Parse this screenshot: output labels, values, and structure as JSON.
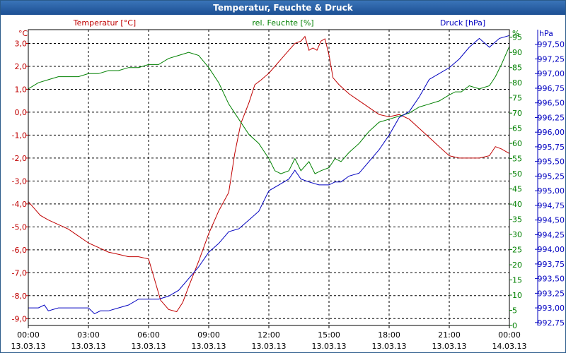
{
  "window": {
    "title": "Temperatur, Feuchte & Druck"
  },
  "colors": {
    "temperature": "#c00000",
    "humidity": "#008000",
    "pressure": "#0000c0",
    "grid": "#000000",
    "titlebar": "#1c4f93"
  },
  "chart_data": {
    "type": "line",
    "title": "Temperatur, Feuchte & Druck",
    "grid": true,
    "x_ticks": [
      {
        "time": "00:00",
        "date": "13.03.13"
      },
      {
        "time": "03:00",
        "date": "13.03.13"
      },
      {
        "time": "06:00",
        "date": "13.03.13"
      },
      {
        "time": "09:00",
        "date": "13.03.13"
      },
      {
        "time": "12:00",
        "date": "13.03.13"
      },
      {
        "time": "15:00",
        "date": "13.03.13"
      },
      {
        "time": "18:00",
        "date": "13.03.13"
      },
      {
        "time": "21:00",
        "date": "13.03.13"
      },
      {
        "time": "00:00",
        "date": "14.03.13"
      }
    ],
    "axes": {
      "temperature": {
        "label": "Temperatur [°C]",
        "unit": "°C",
        "range": [
          -9.3,
          3.6
        ],
        "ticks": [
          "3,0",
          "2,0",
          "1,0",
          "0,0",
          "-1,0",
          "-2,0",
          "-3,0",
          "-4,0",
          "-5,0",
          "-6,0",
          "-7,0",
          "-8,0",
          "-9,0"
        ]
      },
      "humidity": {
        "label": "rel. Feuchte [%]",
        "unit": "%",
        "range": [
          0,
          97.5
        ],
        "ticks": [
          "95",
          "90",
          "85",
          "80",
          "75",
          "70",
          "65",
          "60",
          "55",
          "50",
          "45",
          "40",
          "35",
          "30",
          "25",
          "20",
          "15",
          "10",
          "5",
          "0"
        ]
      },
      "pressure": {
        "label": "Druck [hPa]",
        "unit": "hPa",
        "range": [
          992.7,
          997.75
        ],
        "ticks": [
          "997,50",
          "997,25",
          "997,00",
          "996,75",
          "996,50",
          "996,25",
          "996,00",
          "995,75",
          "995,50",
          "995,25",
          "995,00",
          "994,75",
          "994,50",
          "994,25",
          "994,00",
          "993,75",
          "993,50",
          "993,25",
          "993,00",
          "992,75"
        ]
      }
    },
    "series": [
      {
        "name": "Temperatur [°C]",
        "axis": "temperature",
        "x": [
          0,
          0.3,
          0.6,
          1,
          1.5,
          2,
          2.5,
          3,
          3.5,
          4,
          4.5,
          5,
          5.5,
          6,
          6.3,
          6.6,
          7,
          7.4,
          7.7,
          8,
          8.5,
          9,
          9.5,
          10,
          10.3,
          10.6,
          11,
          11.3,
          11.6,
          12,
          12.3,
          12.6,
          13,
          13.3,
          13.6,
          13.8,
          14,
          14.2,
          14.4,
          14.6,
          14.8,
          15,
          15.2,
          15.5,
          16,
          16.5,
          17,
          17.5,
          18,
          18.5,
          19,
          19.5,
          20,
          20.5,
          21,
          21.5,
          22,
          22.5,
          23,
          23.3,
          23.6,
          24
        ],
        "y": [
          -3.9,
          -4.2,
          -4.5,
          -4.7,
          -4.9,
          -5.1,
          -5.4,
          -5.7,
          -5.9,
          -6.1,
          -6.2,
          -6.3,
          -6.3,
          -6.4,
          -7.3,
          -8.2,
          -8.6,
          -8.7,
          -8.3,
          -7.6,
          -6.5,
          -5.3,
          -4.3,
          -3.5,
          -1.8,
          -0.5,
          0.4,
          1.2,
          1.4,
          1.7,
          2.0,
          2.3,
          2.7,
          3.0,
          3.1,
          3.3,
          2.7,
          2.8,
          2.7,
          3.1,
          3.2,
          2.5,
          1.5,
          1.2,
          0.8,
          0.5,
          0.2,
          -0.1,
          -0.2,
          -0.1,
          -0.3,
          -0.7,
          -1.1,
          -1.5,
          -1.9,
          -2.0,
          -2.0,
          -2.0,
          -1.9,
          -1.5,
          -1.6,
          -1.8
        ]
      },
      {
        "name": "rel. Feuchte [%]",
        "axis": "humidity",
        "x": [
          0,
          0.5,
          1,
          1.5,
          2,
          2.5,
          3,
          3.5,
          4,
          4.5,
          5,
          5.5,
          6,
          6.5,
          7,
          7.5,
          8,
          8.5,
          9,
          9.5,
          10,
          10.5,
          11,
          11.5,
          12,
          12.3,
          12.6,
          13,
          13.3,
          13.6,
          14,
          14.3,
          14.6,
          15,
          15.3,
          15.6,
          16,
          16.5,
          17,
          17.5,
          18,
          18.5,
          19,
          19.5,
          20,
          20.5,
          21,
          21.3,
          21.6,
          22,
          22.5,
          23,
          23.3,
          23.6,
          24
        ],
        "y": [
          78,
          80,
          81,
          82,
          82,
          82,
          83,
          83,
          84,
          84,
          85,
          85,
          86,
          86,
          88,
          89,
          90,
          89,
          85,
          80,
          73,
          68,
          63,
          60,
          55,
          51,
          50,
          51,
          55,
          51,
          54,
          50,
          51,
          52,
          55,
          54,
          57,
          60,
          64,
          67,
          68,
          69,
          70,
          72,
          73,
          74,
          76,
          77,
          77,
          79,
          78,
          79,
          82,
          86,
          92
        ]
      },
      {
        "name": "Druck [hPa]",
        "axis": "pressure",
        "x": [
          0,
          0.5,
          0.8,
          1,
          1.5,
          2,
          2.5,
          3,
          3.3,
          3.6,
          4,
          4.5,
          5,
          5.5,
          6,
          6.5,
          7,
          7.5,
          8,
          8.5,
          9,
          9.5,
          10,
          10.5,
          11,
          11.5,
          12,
          12.5,
          13,
          13.3,
          13.6,
          14,
          14.5,
          15,
          15.3,
          15.6,
          16,
          16.5,
          17,
          17.5,
          18,
          18.5,
          19,
          19.5,
          20,
          20.5,
          21,
          21.5,
          22,
          22.5,
          23,
          23.5,
          24
        ],
        "y": [
          993.0,
          993.0,
          993.05,
          992.95,
          993.0,
          993.0,
          993.0,
          993.0,
          992.9,
          992.95,
          992.95,
          993.0,
          993.05,
          993.15,
          993.15,
          993.15,
          993.2,
          993.3,
          993.5,
          993.7,
          993.95,
          994.1,
          994.3,
          994.35,
          994.5,
          994.65,
          995.0,
          995.1,
          995.2,
          995.35,
          995.2,
          995.15,
          995.1,
          995.1,
          995.15,
          995.15,
          995.25,
          995.3,
          995.5,
          995.7,
          995.95,
          996.25,
          996.35,
          996.6,
          996.9,
          997.0,
          997.1,
          997.25,
          997.45,
          997.6,
          997.45,
          997.6,
          997.65
        ]
      }
    ]
  }
}
